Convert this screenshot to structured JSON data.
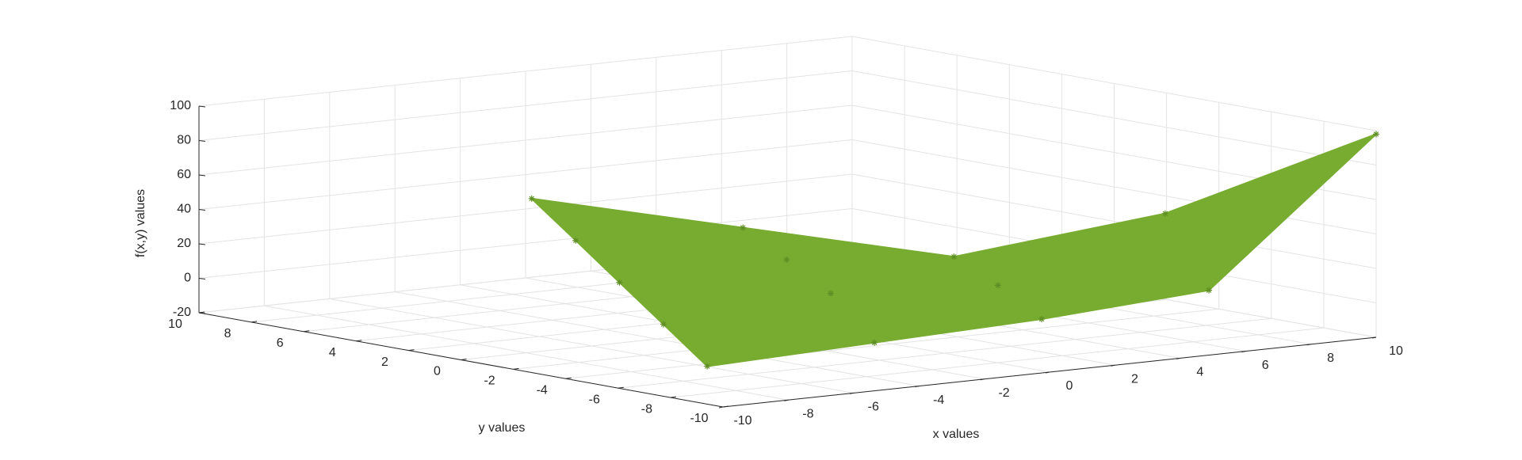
{
  "chart_data": {
    "type": "scatter3",
    "xlabel": "x values",
    "ylabel": "y values",
    "zlabel": "f(x,y) values",
    "x": [
      -10,
      -10,
      -10,
      -10,
      -10,
      -5,
      -5,
      -5,
      -5,
      0,
      0,
      0,
      5,
      5,
      10
    ],
    "y": [
      -9.4,
      -7.73,
      -6.05,
      -4.38,
      -2.7,
      -9.55,
      -7.88,
      -6.2,
      -4.53,
      -9.7,
      -8.03,
      -6.35,
      -9.85,
      -8.18,
      -10
    ],
    "z": [
      2,
      21.8,
      41.5,
      61.3,
      81,
      6,
      30,
      45,
      59,
      10,
      25,
      37,
      17,
      57,
      98
    ],
    "color": "#77ac30",
    "xlim": [
      -10,
      10
    ],
    "xticks": [
      -10,
      -8,
      -6,
      -4,
      -2,
      0,
      2,
      4,
      6,
      8,
      10
    ],
    "ylim": [
      -10,
      10
    ],
    "yticks": [
      -10,
      -8,
      -6,
      -4,
      -2,
      0,
      2,
      4,
      6,
      8,
      10
    ],
    "zlim": [
      -20,
      100
    ],
    "zticks": [
      -20,
      0,
      20,
      40,
      60,
      80,
      100
    ],
    "grid": true
  }
}
